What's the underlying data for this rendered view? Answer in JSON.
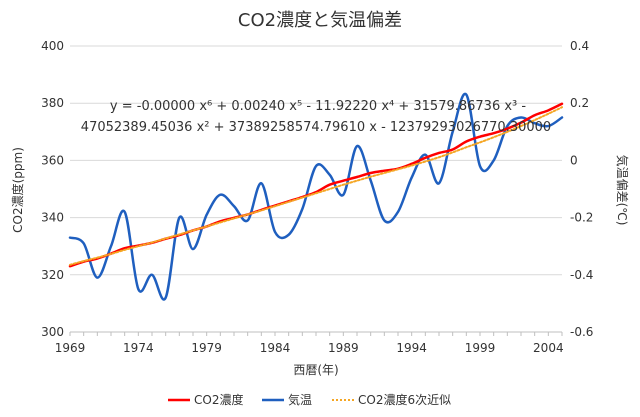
{
  "chart_data": {
    "type": "line",
    "title": "CO2濃度と気温偏差",
    "xlabel": "西暦(年)",
    "ylabel_left": "CO2濃度(ppm)",
    "ylabel_right": "気温偏差(℃)",
    "xlim": [
      1969,
      2005
    ],
    "x_ticks": [
      "1969",
      "1974",
      "1979",
      "1984",
      "1989",
      "1994",
      "1999",
      "2004"
    ],
    "ylim_left": [
      300,
      400
    ],
    "y_ticks_left": [
      "300",
      "320",
      "340",
      "360",
      "380",
      "400"
    ],
    "ylim_right": [
      -0.6,
      0.4
    ],
    "y_ticks_right": [
      "-0.6",
      "-0.4",
      "-0.2",
      "0",
      "0.2",
      "0.4"
    ],
    "grid": "horizontal",
    "legend_position": "bottom",
    "legend": [
      "CO2濃度",
      "気温",
      "CO2濃度6次近似"
    ],
    "trendline_equation": {
      "line1": "y = -0.00000 x⁶ + 0.00240 x⁵ - 11.92220 x⁴ + 31579.86736 x³ -",
      "line2": "47052389.45036 x² + 37389258574.79610 x - 12379293026770.30000"
    },
    "series": [
      {
        "name": "CO2濃度",
        "axis": "left",
        "color": "#ff0000",
        "style": "solid",
        "x": [
          1969,
          1970,
          1971,
          1972,
          1973,
          1974,
          1975,
          1976,
          1977,
          1978,
          1979,
          1980,
          1981,
          1982,
          1983,
          1984,
          1985,
          1986,
          1987,
          1988,
          1989,
          1990,
          1991,
          1992,
          1993,
          1994,
          1995,
          1996,
          1997,
          1998,
          1999,
          2000,
          2001,
          2002,
          2003,
          2004,
          2005
        ],
        "values": [
          323.0,
          324.6,
          325.7,
          327.4,
          329.3,
          330.2,
          331.2,
          332.6,
          333.9,
          335.5,
          336.9,
          338.7,
          339.9,
          341.1,
          342.7,
          344.2,
          345.7,
          347.2,
          348.9,
          351.5,
          352.9,
          354.2,
          355.6,
          356.4,
          357.1,
          358.8,
          360.9,
          362.6,
          363.8,
          366.6,
          368.3,
          369.5,
          371.1,
          373.2,
          375.8,
          377.5,
          379.8
        ]
      },
      {
        "name": "気温",
        "axis": "right",
        "color": "#1f5fbf",
        "style": "solid",
        "x": [
          1969,
          1970,
          1971,
          1972,
          1973,
          1974,
          1975,
          1976,
          1977,
          1978,
          1979,
          1980,
          1981,
          1982,
          1983,
          1984,
          1985,
          1986,
          1987,
          1988,
          1989,
          1990,
          1991,
          1992,
          1993,
          1994,
          1995,
          1996,
          1997,
          1998,
          1999,
          2000,
          2001,
          2002,
          2003,
          2004,
          2005
        ],
        "values": [
          -0.27,
          -0.29,
          -0.41,
          -0.3,
          -0.18,
          -0.45,
          -0.4,
          -0.48,
          -0.2,
          -0.31,
          -0.19,
          -0.12,
          -0.16,
          -0.21,
          -0.08,
          -0.25,
          -0.26,
          -0.17,
          -0.02,
          -0.05,
          -0.12,
          0.05,
          -0.07,
          -0.21,
          -0.18,
          -0.06,
          0.02,
          -0.08,
          0.1,
          0.23,
          -0.02,
          0.0,
          0.12,
          0.15,
          0.13,
          0.12,
          0.15
        ]
      },
      {
        "name": "CO2濃度6次近似",
        "axis": "left",
        "color": "#f5a623",
        "style": "dotted",
        "x": [
          1969,
          1970,
          1971,
          1972,
          1973,
          1974,
          1975,
          1976,
          1977,
          1978,
          1979,
          1980,
          1981,
          1982,
          1983,
          1984,
          1985,
          1986,
          1987,
          1988,
          1989,
          1990,
          1991,
          1992,
          1993,
          1994,
          1995,
          1996,
          1997,
          1998,
          1999,
          2000,
          2001,
          2002,
          2003,
          2004,
          2005
        ],
        "values": [
          323.5,
          324.8,
          326.0,
          327.3,
          328.7,
          330.0,
          331.3,
          332.7,
          334.1,
          335.5,
          336.9,
          338.3,
          339.7,
          341.1,
          342.5,
          344.0,
          345.5,
          347.0,
          348.5,
          350.0,
          351.5,
          352.9,
          354.3,
          355.6,
          356.9,
          358.2,
          359.6,
          361.1,
          362.8,
          364.6,
          366.3,
          368.1,
          370.0,
          372.0,
          374.1,
          376.3,
          378.6
        ]
      }
    ]
  }
}
